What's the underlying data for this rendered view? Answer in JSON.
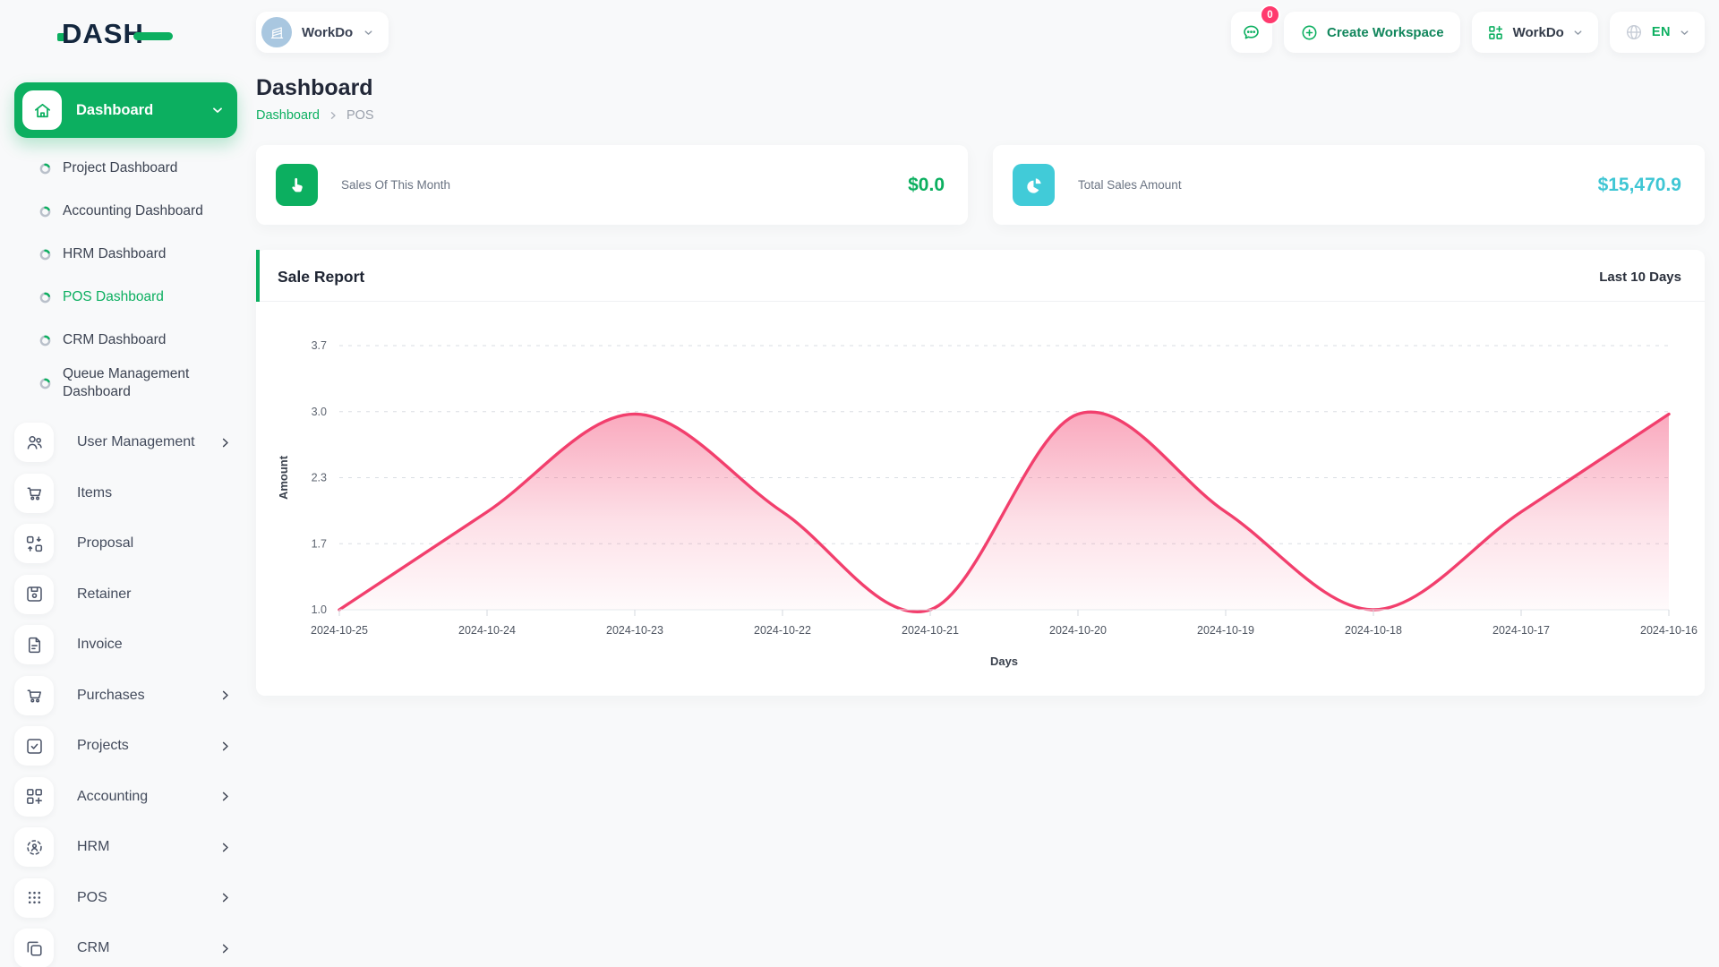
{
  "brand": {
    "logo_text": "DASH"
  },
  "header": {
    "workspace_button_label": "WorkDo",
    "messages_badge": "0",
    "create_workspace_label": "Create Workspace",
    "workspace_dropdown_label": "WorkDo",
    "language": "EN"
  },
  "sidebar": {
    "dashboard": {
      "label": "Dashboard"
    },
    "dashboard_sub": [
      {
        "label": "Project Dashboard",
        "active": false
      },
      {
        "label": "Accounting Dashboard",
        "active": false
      },
      {
        "label": "HRM Dashboard",
        "active": false
      },
      {
        "label": "POS Dashboard",
        "active": true
      },
      {
        "label": "CRM Dashboard",
        "active": false
      },
      {
        "label": "Queue Management Dashboard",
        "active": false
      }
    ],
    "menu": [
      {
        "label": "User Management",
        "expandable": true
      },
      {
        "label": "Items",
        "expandable": false
      },
      {
        "label": "Proposal",
        "expandable": false
      },
      {
        "label": "Retainer",
        "expandable": false
      },
      {
        "label": "Invoice",
        "expandable": false
      },
      {
        "label": "Purchases",
        "expandable": true
      },
      {
        "label": "Projects",
        "expandable": true
      },
      {
        "label": "Accounting",
        "expandable": true
      },
      {
        "label": "HRM",
        "expandable": true
      },
      {
        "label": "POS",
        "expandable": true
      },
      {
        "label": "CRM",
        "expandable": true
      }
    ]
  },
  "page": {
    "title": "Dashboard",
    "breadcrumb": [
      "Dashboard",
      "POS"
    ]
  },
  "stats": [
    {
      "label": "Sales Of This Month",
      "value": "$0.0",
      "accent": "#0caf60",
      "icon": "hand-pointer-icon"
    },
    {
      "label": "Total Sales Amount",
      "value": "$15,470.9",
      "accent": "#3fc6d4",
      "icon": "pie-chart-icon"
    }
  ],
  "report": {
    "title": "Sale Report",
    "range_label": "Last 10 Days"
  },
  "chart_data": {
    "type": "area",
    "title": "Sale Report",
    "x": [
      "2024-10-25",
      "2024-10-24",
      "2024-10-23",
      "2024-10-22",
      "2024-10-21",
      "2024-10-20",
      "2024-10-19",
      "2024-10-18",
      "2024-10-17",
      "2024-10-16"
    ],
    "series": [
      {
        "name": "Amount",
        "values": [
          1,
          2,
          3,
          2,
          1,
          3,
          2,
          1,
          2,
          3
        ]
      }
    ],
    "xlabel": "Days",
    "ylabel": "Amount",
    "ylim": [
      1.0,
      3.7
    ],
    "yticks": [
      "1.0",
      "1.7",
      "2.3",
      "3.0",
      "3.7"
    ],
    "grid": "horizontal-dashed",
    "legend": "none",
    "line_color": "#f23f6d",
    "fill": "vertical pink gradient fading to white"
  },
  "colors": {
    "primary_green": "#0caf60",
    "chart_line_pink": "#f23f6d",
    "cyan": "#3fc6d4",
    "badge_pink": "#ff3a6e",
    "workspace_circle_blue": "#a9c7e0"
  }
}
